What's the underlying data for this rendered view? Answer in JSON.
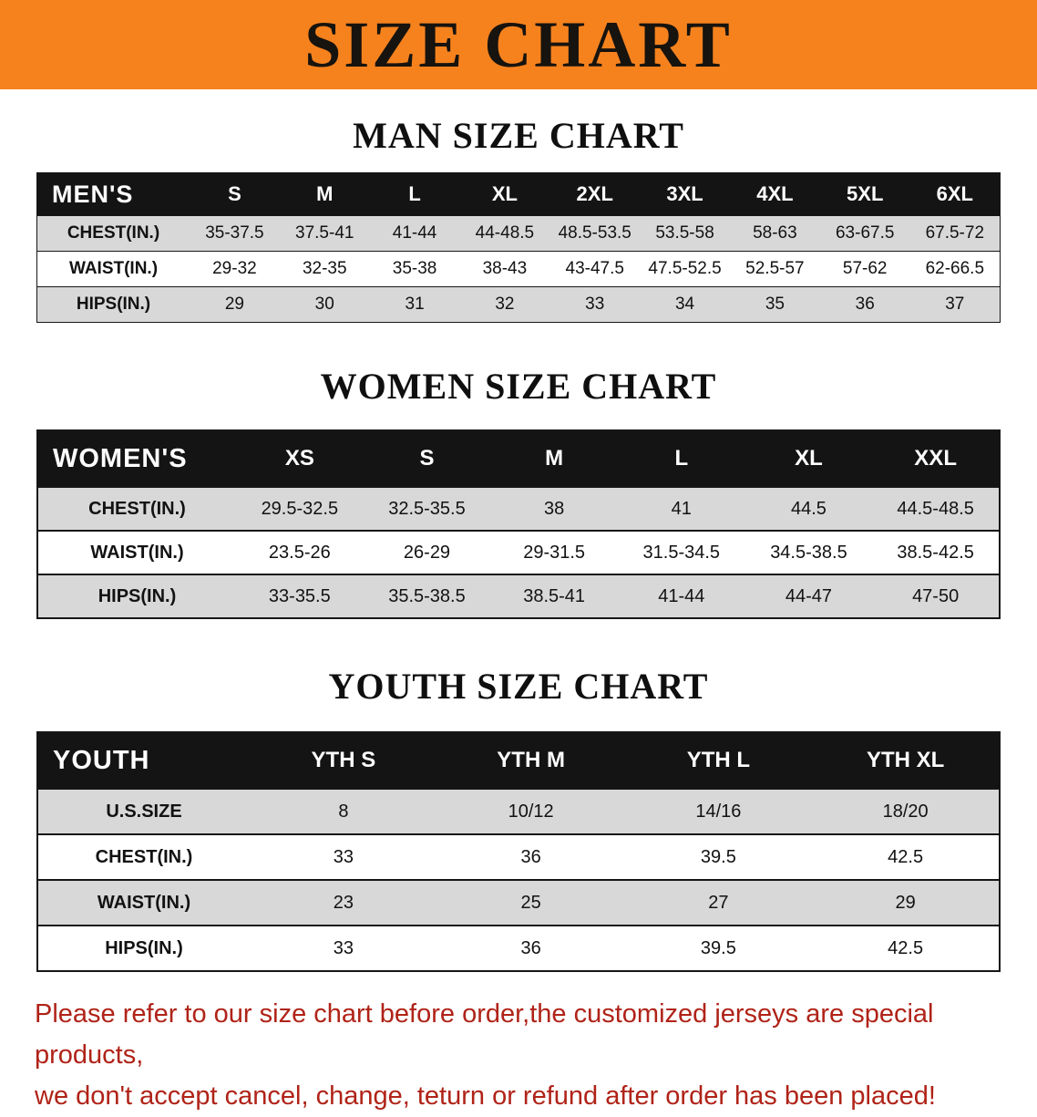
{
  "banner": {
    "title": "SIZE CHART"
  },
  "colors": {
    "banner_bg": "#F6821E",
    "table_header_bg": "#141414",
    "row_stripe": "#D8D8D8",
    "disclaimer_text": "#B02318",
    "text": "#121212"
  },
  "sections": [
    {
      "id": "mens",
      "heading": "MAN SIZE CHART",
      "table": {
        "header": [
          "MEN'S",
          "S",
          "M",
          "L",
          "XL",
          "2XL",
          "3XL",
          "4XL",
          "5XL",
          "6XL"
        ],
        "rows": [
          [
            "CHEST(IN.)",
            "35-37.5",
            "37.5-41",
            "41-44",
            "44-48.5",
            "48.5-53.5",
            "53.5-58",
            "58-63",
            "63-67.5",
            "67.5-72"
          ],
          [
            "WAIST(IN.)",
            "29-32",
            "32-35",
            "35-38",
            "38-43",
            "43-47.5",
            "47.5-52.5",
            "52.5-57",
            "57-62",
            "62-66.5"
          ],
          [
            "HIPS(IN.)",
            "29",
            "30",
            "31",
            "32",
            "33",
            "34",
            "35",
            "36",
            "37"
          ]
        ]
      }
    },
    {
      "id": "womens",
      "heading": "WOMEN SIZE CHART",
      "table": {
        "header": [
          "WOMEN'S",
          "XS",
          "S",
          "M",
          "L",
          "XL",
          "XXL"
        ],
        "rows": [
          [
            "CHEST(IN.)",
            "29.5-32.5",
            "32.5-35.5",
            "38",
            "41",
            "44.5",
            "44.5-48.5"
          ],
          [
            "WAIST(IN.)",
            "23.5-26",
            "26-29",
            "29-31.5",
            "31.5-34.5",
            "34.5-38.5",
            "38.5-42.5"
          ],
          [
            "HIPS(IN.)",
            "33-35.5",
            "35.5-38.5",
            "38.5-41",
            "41-44",
            "44-47",
            "47-50"
          ]
        ]
      }
    },
    {
      "id": "youth",
      "heading": "YOUTH SIZE CHART",
      "table": {
        "header": [
          "YOUTH",
          "YTH S",
          "YTH M",
          "YTH L",
          "YTH XL"
        ],
        "rows": [
          [
            "U.S.SIZE",
            "8",
            "10/12",
            "14/16",
            "18/20"
          ],
          [
            "CHEST(IN.)",
            "33",
            "36",
            "39.5",
            "42.5"
          ],
          [
            "WAIST(IN.)",
            "23",
            "25",
            "27",
            "29"
          ],
          [
            "HIPS(IN.)",
            "33",
            "36",
            "39.5",
            "42.5"
          ]
        ]
      }
    }
  ],
  "disclaimer": {
    "line1": "Please refer to our size chart before order,the customized jerseys are special products,",
    "line2": "we don't accept cancel, change, teturn or refund after order has been placed!"
  }
}
